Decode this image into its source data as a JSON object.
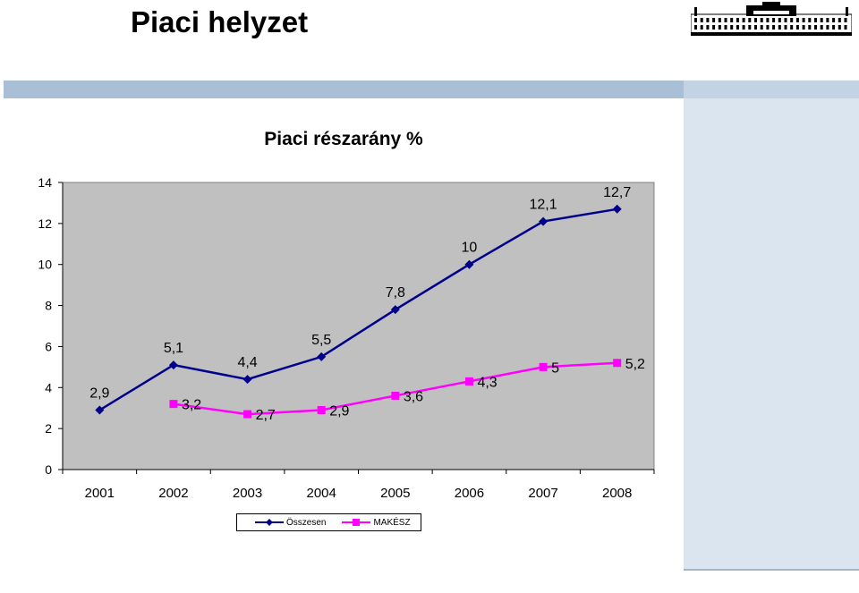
{
  "slide": {
    "title": "Piaci helyzet"
  },
  "chart_data": {
    "type": "line",
    "title": "Piaci részarány %",
    "categories": [
      "2001",
      "2002",
      "2003",
      "2004",
      "2005",
      "2006",
      "2007",
      "2008"
    ],
    "ylim": [
      0,
      14
    ],
    "yticks": [
      0,
      2,
      4,
      6,
      8,
      10,
      12,
      14
    ],
    "grid": false,
    "plot_background": "#c0c0c0",
    "legend_position": "bottom",
    "series": [
      {
        "name": "Összesen",
        "color": "#00008b",
        "marker": "diamond",
        "values": [
          2.9,
          5.1,
          4.4,
          5.5,
          7.8,
          10,
          12.1,
          12.7
        ],
        "labels": [
          "2,9",
          "5,1",
          "4,4",
          "5,5",
          "7,8",
          "10",
          "12,1",
          "12,7"
        ]
      },
      {
        "name": "MAKÉSZ",
        "color": "#ff00ff",
        "marker": "square",
        "values": [
          null,
          3.2,
          2.7,
          2.9,
          3.6,
          4.3,
          5,
          5.2
        ],
        "labels": [
          "",
          "3,2",
          "2,7",
          "2,9",
          "3,6",
          "4,3",
          "5",
          "5,2"
        ]
      }
    ]
  }
}
